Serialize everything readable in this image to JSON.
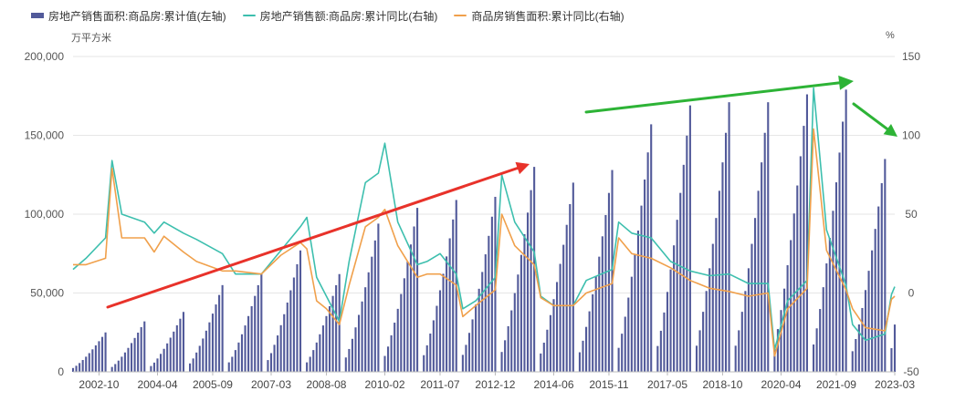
{
  "legend": {
    "bar": "房地产销售面积:商品房:累计值(左轴)",
    "line1": "房地产销售额:商品房:累计同比(右轴)",
    "line2": "商品房销售面积:累计同比(右轴)"
  },
  "chart_data": {
    "type": "bar+line",
    "left_unit": "万平方米",
    "right_unit": "%",
    "left_axis": {
      "min": 0,
      "max": 200000,
      "ticks": [
        0,
        50000,
        100000,
        150000,
        200000
      ],
      "tick_labels": [
        "0",
        "50,000",
        "100,000",
        "150,000",
        "200,000"
      ]
    },
    "right_axis": {
      "min": -50,
      "max": 150,
      "ticks": [
        -50,
        0,
        50,
        100,
        150
      ],
      "tick_labels": [
        "-50",
        "0",
        "50",
        "100",
        "150"
      ]
    },
    "x_tick_labels": [
      "2002-10",
      "2004-04",
      "2005-09",
      "2007-03",
      "2008-08",
      "2010-02",
      "2011-07",
      "2012-12",
      "2014-06",
      "2015-11",
      "2017-05",
      "2018-10",
      "2020-04",
      "2021-09",
      "2023-03"
    ],
    "period": "2002-02 to 2023-03 monthly (Jan and Feb combined), year-to-date cumulative",
    "annual_totals": [
      [
        "2002",
        25000
      ],
      [
        "2003",
        32000
      ],
      [
        "2004",
        38000
      ],
      [
        "2005",
        55000
      ],
      [
        "2006",
        62000
      ],
      [
        "2007",
        77000
      ],
      [
        "2008",
        62000
      ],
      [
        "2009",
        94000
      ],
      [
        "2010",
        104000
      ],
      [
        "2011",
        109000
      ],
      [
        "2012",
        111000
      ],
      [
        "2013",
        130000
      ],
      [
        "2014",
        120000
      ],
      [
        "2015",
        128000
      ],
      [
        "2016",
        157000
      ],
      [
        "2017",
        169000
      ],
      [
        "2018",
        171000
      ],
      [
        "2019",
        171000
      ],
      [
        "2020",
        176000
      ],
      [
        "2021",
        179000
      ],
      [
        "2022",
        135000
      ]
    ],
    "year_2023": [
      [
        "2023-02",
        15000
      ],
      [
        "2023-03",
        30000
      ]
    ],
    "series": [
      {
        "name": "房地产销售额:商品房:累计同比(右轴)",
        "color": "#3dbfae",
        "points": [
          [
            "2002-02",
            15
          ],
          [
            "2002-06",
            22
          ],
          [
            "2002-12",
            35
          ],
          [
            "2003-02",
            84
          ],
          [
            "2003-05",
            50
          ],
          [
            "2003-12",
            45
          ],
          [
            "2004-03",
            38
          ],
          [
            "2004-06",
            45
          ],
          [
            "2004-12",
            38
          ],
          [
            "2005-04",
            34
          ],
          [
            "2005-12",
            25
          ],
          [
            "2006-04",
            12
          ],
          [
            "2006-12",
            12
          ],
          [
            "2007-06",
            27
          ],
          [
            "2007-12",
            42
          ],
          [
            "2008-02",
            48
          ],
          [
            "2008-05",
            10
          ],
          [
            "2008-08",
            -2
          ],
          [
            "2008-12",
            -18
          ],
          [
            "2009-03",
            20
          ],
          [
            "2009-08",
            70
          ],
          [
            "2009-12",
            76
          ],
          [
            "2010-02",
            95
          ],
          [
            "2010-06",
            45
          ],
          [
            "2010-12",
            18
          ],
          [
            "2011-03",
            20
          ],
          [
            "2011-07",
            25
          ],
          [
            "2011-12",
            12
          ],
          [
            "2012-02",
            -10
          ],
          [
            "2012-06",
            -5
          ],
          [
            "2012-12",
            10
          ],
          [
            "2013-02",
            75
          ],
          [
            "2013-06",
            45
          ],
          [
            "2013-12",
            26
          ],
          [
            "2014-02",
            -2
          ],
          [
            "2014-06",
            -8
          ],
          [
            "2014-12",
            -8
          ],
          [
            "2015-04",
            8
          ],
          [
            "2015-12",
            15
          ],
          [
            "2016-02",
            45
          ],
          [
            "2016-06",
            38
          ],
          [
            "2016-12",
            35
          ],
          [
            "2017-06",
            20
          ],
          [
            "2017-12",
            14
          ],
          [
            "2018-06",
            11
          ],
          [
            "2018-12",
            12
          ],
          [
            "2019-06",
            6
          ],
          [
            "2019-12",
            6
          ],
          [
            "2020-02",
            -36
          ],
          [
            "2020-06",
            -5
          ],
          [
            "2020-12",
            8
          ],
          [
            "2021-02",
            130
          ],
          [
            "2021-06",
            40
          ],
          [
            "2021-12",
            5
          ],
          [
            "2022-02",
            -20
          ],
          [
            "2022-06",
            -30
          ],
          [
            "2022-12",
            -26
          ],
          [
            "2023-02",
            -1
          ],
          [
            "2023-03",
            4
          ]
        ]
      },
      {
        "name": "商品房销售面积:累计同比(右轴)",
        "color": "#f0a04b",
        "points": [
          [
            "2002-02",
            18
          ],
          [
            "2002-06",
            18
          ],
          [
            "2002-12",
            22
          ],
          [
            "2003-02",
            79
          ],
          [
            "2003-05",
            35
          ],
          [
            "2003-12",
            35
          ],
          [
            "2004-03",
            26
          ],
          [
            "2004-06",
            36
          ],
          [
            "2004-12",
            26
          ],
          [
            "2005-04",
            20
          ],
          [
            "2005-12",
            14
          ],
          [
            "2006-04",
            14
          ],
          [
            "2006-12",
            12
          ],
          [
            "2007-06",
            24
          ],
          [
            "2007-12",
            32
          ],
          [
            "2008-02",
            28
          ],
          [
            "2008-05",
            -5
          ],
          [
            "2008-08",
            -10
          ],
          [
            "2008-12",
            -20
          ],
          [
            "2009-03",
            5
          ],
          [
            "2009-08",
            42
          ],
          [
            "2009-12",
            48
          ],
          [
            "2010-02",
            53
          ],
          [
            "2010-06",
            30
          ],
          [
            "2010-12",
            10
          ],
          [
            "2011-03",
            12
          ],
          [
            "2011-07",
            12
          ],
          [
            "2011-12",
            5
          ],
          [
            "2012-02",
            -15
          ],
          [
            "2012-06",
            -8
          ],
          [
            "2012-12",
            2
          ],
          [
            "2013-02",
            50
          ],
          [
            "2013-06",
            30
          ],
          [
            "2013-12",
            18
          ],
          [
            "2014-02",
            -3
          ],
          [
            "2014-06",
            -8
          ],
          [
            "2014-12",
            -8
          ],
          [
            "2015-04",
            0
          ],
          [
            "2015-12",
            6
          ],
          [
            "2016-02",
            35
          ],
          [
            "2016-06",
            25
          ],
          [
            "2016-12",
            22
          ],
          [
            "2017-06",
            16
          ],
          [
            "2017-12",
            8
          ],
          [
            "2018-06",
            3
          ],
          [
            "2018-12",
            1
          ],
          [
            "2019-06",
            -2
          ],
          [
            "2019-12",
            0
          ],
          [
            "2020-02",
            -40
          ],
          [
            "2020-06",
            -10
          ],
          [
            "2020-12",
            3
          ],
          [
            "2021-02",
            104
          ],
          [
            "2021-06",
            27
          ],
          [
            "2021-12",
            2
          ],
          [
            "2022-02",
            -10
          ],
          [
            "2022-06",
            -22
          ],
          [
            "2022-12",
            -24
          ],
          [
            "2023-02",
            -4
          ],
          [
            "2023-03",
            -2
          ]
        ]
      }
    ],
    "annotations": [
      {
        "type": "arrow",
        "color": "#e8322a"
      },
      {
        "type": "arrow",
        "color": "#2db336"
      },
      {
        "type": "arrow",
        "color": "#2db336"
      }
    ],
    "grid": "horizontal",
    "legend_position": "top-left"
  }
}
